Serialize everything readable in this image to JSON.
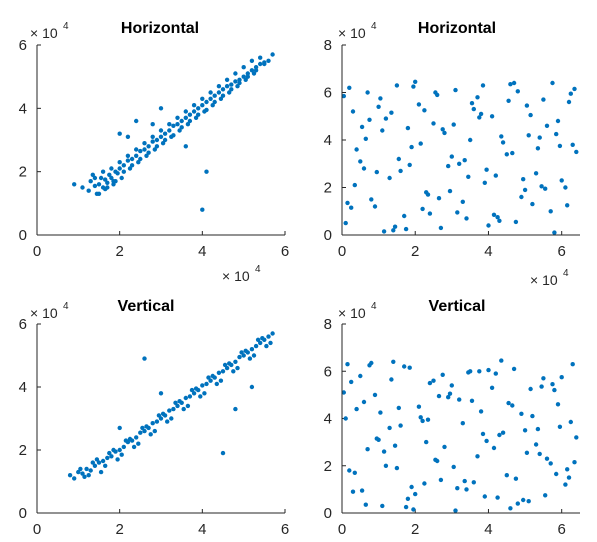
{
  "chart_data": [
    {
      "type": "scatter",
      "title": "Horizontal",
      "xlim": [
        0,
        60000
      ],
      "ylim": [
        0,
        60000
      ],
      "xticks": [
        "0",
        "2",
        "4",
        "6"
      ],
      "yticks": [
        "0",
        "2",
        "4",
        "6"
      ],
      "x_multiplier": "× 10",
      "x_multiplier_exp": "4",
      "y_multiplier": "× 10",
      "y_multiplier_exp": "4",
      "marker_color": "#0072BD",
      "series": [
        {
          "x": [
            9000,
            11000,
            12500,
            13000,
            14000,
            14500,
            15000,
            15500,
            16000,
            16500,
            17000,
            17500,
            18000,
            18500,
            19000,
            19500,
            20000,
            21000,
            22000,
            23000,
            24000,
            25000,
            26000,
            27000,
            28000,
            29000,
            30000,
            31000,
            32000,
            33000,
            34000,
            35000,
            36000,
            37000,
            38000,
            39000,
            40000,
            41000,
            42000,
            43000,
            44000,
            45000,
            46000,
            47000,
            48000,
            49000,
            50000,
            51000,
            52000,
            53000,
            54000,
            55000,
            56000,
            57000,
            15000,
            17000,
            19000,
            21000,
            23000,
            25000,
            27000,
            29000,
            31000,
            33000,
            35000,
            37000,
            39000,
            41000,
            43000,
            45000,
            47000,
            49000,
            51000,
            53000,
            55000,
            14000,
            16000,
            18000,
            20000,
            22000,
            24000,
            26000,
            28000,
            30000,
            32000,
            34000,
            36000,
            38000,
            40000,
            42000,
            44000,
            46000,
            48000,
            50000,
            52000,
            54000,
            13500,
            16500,
            18500,
            20500,
            22500,
            24500,
            26500,
            28500,
            30500,
            32500,
            34500,
            36500,
            38500,
            40500,
            42500,
            44500,
            46500,
            48500,
            50500,
            52500,
            20000,
            24000,
            30000,
            36000,
            40000,
            41000,
            28000,
            22000
          ],
          "y": [
            16000,
            15000,
            14000,
            17000,
            15500,
            13000,
            16000,
            18000,
            15000,
            17500,
            16500,
            19000,
            18000,
            17000,
            20000,
            19500,
            21000,
            22000,
            23500,
            24000,
            25000,
            26500,
            27000,
            28000,
            29500,
            30000,
            31000,
            32000,
            33000,
            34500,
            35000,
            36000,
            37000,
            38000,
            39000,
            40000,
            41000,
            42000,
            43000,
            44000,
            45000,
            46000,
            47000,
            47500,
            48500,
            49000,
            50000,
            51000,
            52000,
            53000,
            54000,
            54500,
            55000,
            57000,
            13000,
            15000,
            17000,
            20000,
            22000,
            24000,
            26000,
            28000,
            30000,
            31500,
            34000,
            36000,
            38000,
            39500,
            42000,
            44000,
            46000,
            48000,
            50000,
            52000,
            54000,
            18000,
            20000,
            21000,
            23000,
            25000,
            27000,
            29000,
            31000,
            33000,
            35000,
            37000,
            39000,
            41000,
            43000,
            45000,
            47000,
            49000,
            51000,
            53000,
            55000,
            56000,
            19000,
            14500,
            16000,
            18000,
            21000,
            23000,
            25000,
            27000,
            29000,
            31000,
            33000,
            35000,
            37000,
            39000,
            41000,
            43000,
            45000,
            47000,
            49000,
            51000,
            32000,
            36000,
            40000,
            28000,
            8000,
            20000,
            35000,
            31000
          ]
        }
      ]
    },
    {
      "type": "scatter",
      "title": "Horizontal",
      "xlim": [
        0,
        65000
      ],
      "ylim": [
        0,
        80000
      ],
      "xticks": [
        "0",
        "2",
        "4",
        "6"
      ],
      "yticks": [
        "0",
        "2",
        "4",
        "6",
        "8"
      ],
      "x_multiplier": "× 10",
      "x_multiplier_exp": "4",
      "y_multiplier": "× 10",
      "y_multiplier_exp": "4",
      "marker_color": "#0072BD",
      "series": [
        {
          "x": [
            1000,
            3000,
            5000,
            7000,
            9000,
            11000,
            13000,
            15000,
            17000,
            19000,
            21000,
            23000,
            25000,
            27000,
            29000,
            31000,
            33000,
            35000,
            37000,
            39000,
            41000,
            43000,
            45000,
            47000,
            49000,
            51000,
            53000,
            55000,
            57000,
            59000,
            61000,
            63000,
            2000,
            6000,
            10000,
            14000,
            18000,
            22000,
            26000,
            30000,
            34000,
            38000,
            42000,
            46000,
            50000,
            54000,
            58000,
            62000,
            4000,
            8000,
            12000,
            16000,
            20000,
            24000,
            28000,
            32000,
            36000,
            40000,
            44000,
            48000,
            52000,
            56000,
            60000,
            64000,
            500,
            3500,
            7500,
            11500,
            15500,
            19500,
            23500,
            27500,
            31500,
            35500,
            39500,
            43500,
            47500,
            51500,
            55500,
            59500,
            63500,
            2500,
            6500,
            10500,
            14500,
            18500,
            22500,
            26500,
            30500,
            34500,
            38500,
            42500,
            46500,
            50500,
            54500,
            58500,
            62500,
            1500,
            5500,
            9500,
            13500,
            17500,
            21500,
            25500,
            29500,
            33500,
            37500,
            41500,
            45500,
            49500,
            53500,
            57500,
            61500
          ],
          "y": [
            5000,
            52000,
            31000,
            60000,
            12000,
            44000,
            24000,
            63000,
            8000,
            37000,
            55000,
            18000,
            47000,
            3000,
            29000,
            61000,
            14000,
            40000,
            58000,
            22000,
            50000,
            6000,
            34000,
            64000,
            16000,
            42000,
            26000,
            57000,
            10000,
            48000,
            20000,
            38000,
            62000,
            28000,
            54000,
            2000,
            45000,
            11000,
            59000,
            33000,
            7000,
            51000,
            25000,
            63500,
            19000,
            41000,
            1000,
            56000,
            36000,
            15000,
            49000,
            27000,
            64500,
            9000,
            43000,
            30000,
            53000,
            4000,
            39000,
            60500,
            13000,
            46000,
            23000,
            35000,
            58500,
            21000,
            48500,
            1500,
            32000,
            62500,
            17000,
            44500,
            9500,
            55500,
            27500,
            41500,
            5500,
            50500,
            19500,
            37500,
            61500,
            11500,
            40500,
            57500,
            3500,
            29500,
            52500,
            15500,
            46500,
            24500,
            63000,
            7500,
            34500,
            54500,
            20500,
            42500,
            59500,
            13500,
            45500,
            26500,
            51500,
            2500,
            38500,
            60000,
            18500,
            31500,
            49500,
            8500,
            56500,
            23500,
            36500,
            64000,
            12500
          ]
        }
      ]
    },
    {
      "type": "scatter",
      "title": "Vertical",
      "xlim": [
        0,
        60000
      ],
      "ylim": [
        0,
        60000
      ],
      "xticks": [
        "0",
        "2",
        "4",
        "6"
      ],
      "yticks": [
        "0",
        "2",
        "4",
        "6"
      ],
      "x_multiplier": "× 10",
      "x_multiplier_exp": "4",
      "y_multiplier": "× 10",
      "y_multiplier_exp": "4",
      "marker_color": "#0072BD",
      "series": [
        {
          "x": [
            8000,
            9000,
            10000,
            11000,
            12000,
            13000,
            14000,
            15000,
            16000,
            17000,
            18000,
            19000,
            20000,
            21000,
            22000,
            23000,
            24000,
            25000,
            26000,
            27000,
            28000,
            29000,
            30000,
            31000,
            32000,
            33000,
            34000,
            35000,
            36000,
            37000,
            38000,
            39000,
            40000,
            41000,
            42000,
            43000,
            44000,
            45000,
            46000,
            47000,
            48000,
            49000,
            50000,
            51000,
            52000,
            53000,
            54000,
            55000,
            56000,
            57000,
            10500,
            12500,
            14500,
            16500,
            18500,
            20500,
            22500,
            24500,
            26500,
            28500,
            30500,
            32500,
            34500,
            36500,
            38500,
            40500,
            42500,
            44500,
            46500,
            48500,
            50500,
            52500,
            54500,
            56500,
            11500,
            13500,
            15500,
            17500,
            19500,
            21500,
            23500,
            25500,
            27500,
            29500,
            31500,
            33500,
            35500,
            37500,
            39500,
            41500,
            43500,
            45500,
            47500,
            49500,
            51500,
            53500,
            55500,
            26000,
            45000,
            30000,
            20000,
            48000,
            52000
          ],
          "y": [
            12000,
            11000,
            13000,
            12500,
            14000,
            13500,
            15000,
            16000,
            16500,
            17500,
            18000,
            19500,
            20000,
            21000,
            22500,
            23000,
            24000,
            25500,
            26000,
            27000,
            28500,
            29000,
            30000,
            31000,
            32500,
            33000,
            34000,
            35000,
            36500,
            37000,
            38000,
            39000,
            40500,
            41000,
            42000,
            43000,
            44500,
            45000,
            46000,
            47000,
            48000,
            49500,
            50000,
            51000,
            52000,
            53000,
            54000,
            55000,
            56000,
            57000,
            14000,
            12000,
            17000,
            15000,
            20000,
            18500,
            23500,
            22000,
            27500,
            26000,
            31500,
            30000,
            35500,
            34000,
            39500,
            38000,
            43500,
            42000,
            47500,
            46000,
            51500,
            50000,
            55500,
            54000,
            11500,
            16000,
            13000,
            19000,
            17000,
            23000,
            21000,
            27000,
            25000,
            31000,
            29000,
            35000,
            33000,
            39000,
            37000,
            43000,
            41000,
            47000,
            45000,
            51000,
            49000,
            55000,
            53000,
            49000,
            19000,
            38000,
            27000,
            33000,
            40000
          ]
        }
      ]
    },
    {
      "type": "scatter",
      "title": "Vertical",
      "xlim": [
        0,
        65000
      ],
      "ylim": [
        0,
        80000
      ],
      "xticks": [
        "0",
        "2",
        "4",
        "6"
      ],
      "yticks": [
        "0",
        "2",
        "4",
        "6",
        "8"
      ],
      "x_multiplier": "× 10",
      "x_multiplier_exp": "4",
      "y_multiplier": "× 10",
      "y_multiplier_exp": "4",
      "marker_color": "#0072BD",
      "series": [
        {
          "x": [
            1000,
            3000,
            5000,
            7000,
            9000,
            11000,
            13000,
            15000,
            17000,
            19000,
            21000,
            23000,
            25000,
            27000,
            29000,
            31000,
            33000,
            35000,
            37000,
            39000,
            41000,
            43000,
            45000,
            47000,
            49000,
            51000,
            53000,
            55000,
            57000,
            59000,
            61000,
            63000,
            2000,
            6000,
            10000,
            14000,
            18000,
            22000,
            26000,
            30000,
            34000,
            38000,
            42000,
            46000,
            50000,
            54000,
            58000,
            62000,
            4000,
            8000,
            12000,
            16000,
            20000,
            24000,
            28000,
            32000,
            36000,
            40000,
            44000,
            48000,
            52000,
            56000,
            60000,
            64000,
            500,
            3500,
            7500,
            11500,
            15500,
            19500,
            23500,
            27500,
            31500,
            35500,
            39500,
            43500,
            47500,
            51500,
            55500,
            59500,
            63500,
            2500,
            6500,
            10500,
            14500,
            18500,
            22500,
            26500,
            30500,
            34500,
            38500,
            42500,
            46500,
            50500,
            54500,
            58500,
            62500,
            1500,
            5500,
            9500,
            13500,
            17500,
            21500,
            25500,
            29500,
            33500,
            37500,
            41500,
            45500,
            49500,
            53500,
            57500,
            61500
          ],
          "y": [
            40000,
            9000,
            58000,
            27000,
            50000,
            3000,
            36000,
            19000,
            62000,
            11000,
            45000,
            30000,
            56000,
            14000,
            49000,
            1000,
            38000,
            60000,
            24000,
            7000,
            53000,
            33000,
            16000,
            61000,
            42000,
            5000,
            29000,
            57000,
            21000,
            46000,
            12000,
            63000,
            18000,
            47000,
            31000,
            64000,
            6000,
            39000,
            22000,
            54000,
            10000,
            43000,
            59000,
            2000,
            35000,
            25000,
            52000,
            15000,
            44000,
            63500,
            20000,
            37000,
            8000,
            55000,
            28000,
            48000,
            13000,
            60500,
            34000,
            4000,
            41000,
            23000,
            57500,
            32000,
            51000,
            17000,
            62500,
            26000,
            44500,
            1500,
            39500,
            58500,
            10500,
            47500,
            30500,
            64500,
            14500,
            52500,
            7500,
            36500,
            21500,
            55500,
            3500,
            42500,
            28500,
            61500,
            12500,
            49500,
            19500,
            59500,
            33500,
            6500,
            45500,
            25500,
            53500,
            16500,
            38500,
            63000,
            9500,
            31500,
            56500,
            2500,
            40500,
            22500,
            50500,
            13500,
            60000,
            27500,
            46500,
            5500,
            35500,
            54500,
            18500
          ]
        }
      ]
    }
  ]
}
